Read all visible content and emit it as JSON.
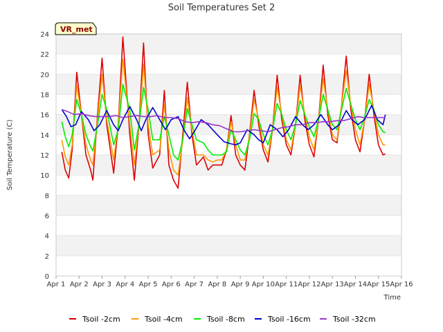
{
  "chart_data": {
    "type": "line",
    "title": "Soil Temperatures Set 2",
    "xlabel": "Time",
    "ylabel": "Soil Temperature (C)",
    "station_label": "VR_met",
    "xlim": [
      1,
      16
    ],
    "ylim": [
      0,
      24
    ],
    "x_tick_labels": [
      "Apr 1",
      "Apr 2",
      "Apr 3",
      "Apr 4",
      "Apr 5",
      "Apr 6",
      "Apr 7",
      "Apr 8",
      "Apr 9",
      "Apr 10",
      "Apr 11",
      "Apr 12",
      "Apr 13",
      "Apr 14",
      "Apr 15",
      "Apr 16"
    ],
    "y_ticks": [
      0,
      2,
      4,
      6,
      8,
      10,
      12,
      14,
      16,
      18,
      20,
      22,
      24
    ],
    "grid": "horizontal alternating bands",
    "legend_position": "bottom",
    "series": [
      {
        "name": "Tsoil -2cm",
        "color": "#dd0000",
        "x": [
          1.25,
          1.4,
          1.55,
          1.7,
          1.9,
          2.1,
          2.3,
          2.5,
          2.6,
          2.8,
          3.0,
          3.2,
          3.5,
          3.7,
          3.9,
          4.2,
          4.4,
          4.6,
          4.8,
          5.0,
          5.2,
          5.5,
          5.7,
          5.9,
          6.1,
          6.3,
          6.5,
          6.7,
          6.9,
          7.1,
          7.4,
          7.6,
          7.8,
          8.0,
          8.2,
          8.4,
          8.6,
          8.8,
          9.0,
          9.2,
          9.4,
          9.6,
          9.8,
          10.0,
          10.2,
          10.4,
          10.6,
          10.8,
          11.0,
          11.2,
          11.4,
          11.6,
          11.8,
          12.0,
          12.2,
          12.4,
          12.6,
          12.8,
          13.0,
          13.2,
          13.4,
          13.6,
          13.8,
          14.0,
          14.2,
          14.4,
          14.6,
          14.8,
          15.0,
          15.2,
          15.3
        ],
        "y": [
          12.3,
          10.5,
          9.7,
          12.5,
          20.2,
          16.0,
          12.0,
          10.5,
          9.5,
          16.0,
          21.6,
          15.0,
          10.2,
          15.0,
          23.7,
          14.0,
          9.5,
          15.0,
          23.1,
          14.0,
          10.7,
          12.0,
          18.4,
          11.0,
          9.5,
          8.7,
          14.0,
          19.2,
          14.0,
          11.0,
          11.8,
          10.5,
          11.0,
          11.0,
          11.0,
          12.5,
          15.9,
          12.0,
          11.0,
          10.5,
          14.0,
          18.4,
          15.0,
          12.5,
          11.3,
          14.5,
          19.9,
          15.5,
          13.0,
          12.0,
          15.0,
          19.9,
          15.5,
          13.0,
          11.8,
          15.5,
          20.9,
          16.0,
          13.5,
          13.2,
          17.0,
          21.8,
          16.5,
          13.5,
          12.3,
          15.5,
          20.0,
          16.0,
          13.0,
          12.0,
          12.1
        ]
      },
      {
        "name": "Tsoil -4cm",
        "color": "#ff9900",
        "x": [
          1.25,
          1.4,
          1.55,
          1.7,
          1.9,
          2.1,
          2.3,
          2.5,
          2.6,
          2.8,
          3.0,
          3.2,
          3.5,
          3.7,
          3.9,
          4.2,
          4.4,
          4.6,
          4.8,
          5.0,
          5.2,
          5.5,
          5.7,
          5.9,
          6.1,
          6.3,
          6.5,
          6.7,
          6.9,
          7.1,
          7.4,
          7.6,
          7.8,
          8.0,
          8.2,
          8.4,
          8.6,
          8.8,
          9.0,
          9.2,
          9.4,
          9.6,
          9.8,
          10.0,
          10.2,
          10.4,
          10.6,
          10.8,
          11.0,
          11.2,
          11.4,
          11.6,
          11.8,
          12.0,
          12.2,
          12.4,
          12.6,
          12.8,
          13.0,
          13.2,
          13.4,
          13.6,
          13.8,
          14.0,
          14.2,
          14.4,
          14.6,
          14.8,
          15.0,
          15.2,
          15.3
        ],
        "y": [
          13.5,
          11.8,
          11.0,
          13.0,
          18.9,
          16.0,
          13.0,
          11.5,
          11.0,
          15.5,
          20.0,
          15.5,
          11.5,
          15.0,
          21.5,
          15.0,
          11.0,
          15.0,
          21.0,
          15.0,
          12.0,
          12.5,
          17.0,
          12.5,
          10.5,
          10.0,
          13.5,
          17.7,
          14.5,
          12.0,
          12.0,
          11.5,
          11.3,
          11.5,
          11.5,
          12.5,
          15.3,
          13.0,
          11.5,
          11.5,
          13.8,
          17.5,
          15.5,
          13.0,
          12.0,
          14.5,
          18.7,
          16.0,
          13.5,
          12.5,
          15.0,
          18.9,
          16.0,
          13.8,
          12.5,
          15.5,
          19.6,
          16.5,
          14.0,
          13.5,
          17.0,
          20.4,
          17.0,
          14.5,
          13.0,
          15.5,
          19.0,
          16.5,
          14.0,
          13.0,
          13.0
        ]
      },
      {
        "name": "Tsoil -8cm",
        "color": "#00ee00",
        "x": [
          1.25,
          1.4,
          1.55,
          1.7,
          1.9,
          2.1,
          2.3,
          2.5,
          2.6,
          2.8,
          3.0,
          3.2,
          3.5,
          3.7,
          3.9,
          4.2,
          4.4,
          4.6,
          4.8,
          5.0,
          5.2,
          5.5,
          5.7,
          5.9,
          6.1,
          6.3,
          6.5,
          6.7,
          6.9,
          7.1,
          7.4,
          7.6,
          7.8,
          8.0,
          8.2,
          8.4,
          8.6,
          8.8,
          9.0,
          9.2,
          9.4,
          9.6,
          9.8,
          10.0,
          10.2,
          10.4,
          10.6,
          10.8,
          11.0,
          11.2,
          11.4,
          11.6,
          11.8,
          12.0,
          12.2,
          12.4,
          12.6,
          12.8,
          13.0,
          13.2,
          13.4,
          13.6,
          13.8,
          14.0,
          14.2,
          14.4,
          14.6,
          14.8,
          15.0,
          15.2,
          15.3
        ],
        "y": [
          15.3,
          13.8,
          12.8,
          14.0,
          17.5,
          16.0,
          14.0,
          12.8,
          12.4,
          15.0,
          18.0,
          16.5,
          13.0,
          14.5,
          19.0,
          16.5,
          12.5,
          15.0,
          18.7,
          16.5,
          13.5,
          13.5,
          15.8,
          14.0,
          12.0,
          11.5,
          13.5,
          16.6,
          15.0,
          13.5,
          13.2,
          12.5,
          12.0,
          12.0,
          12.0,
          12.3,
          14.5,
          13.5,
          12.5,
          12.0,
          13.5,
          16.1,
          15.5,
          14.0,
          13.0,
          14.5,
          17.1,
          16.0,
          14.5,
          13.5,
          15.0,
          17.4,
          16.0,
          14.8,
          13.8,
          15.5,
          18.0,
          16.5,
          15.0,
          14.5,
          16.5,
          18.6,
          17.0,
          15.5,
          14.5,
          15.8,
          17.5,
          16.5,
          15.0,
          14.3,
          14.2
        ]
      },
      {
        "name": "Tsoil -16cm",
        "color": "#0000cc",
        "x": [
          1.25,
          1.45,
          1.65,
          1.85,
          2.1,
          2.4,
          2.65,
          2.9,
          3.2,
          3.5,
          3.7,
          3.9,
          4.2,
          4.5,
          4.7,
          4.9,
          5.2,
          5.5,
          5.75,
          6.0,
          6.3,
          6.55,
          6.8,
          7.0,
          7.3,
          7.6,
          7.8,
          8.0,
          8.3,
          8.6,
          8.8,
          9.0,
          9.3,
          9.6,
          9.8,
          10.0,
          10.3,
          10.6,
          10.85,
          11.1,
          11.4,
          11.7,
          11.95,
          12.2,
          12.5,
          12.8,
          13.0,
          13.3,
          13.6,
          13.85,
          14.1,
          14.4,
          14.7,
          14.95,
          15.2,
          15.3
        ],
        "y": [
          16.5,
          15.8,
          14.8,
          15.0,
          16.3,
          15.5,
          14.4,
          15.0,
          16.4,
          15.0,
          14.4,
          15.5,
          16.8,
          15.5,
          14.4,
          15.5,
          16.7,
          15.5,
          14.5,
          15.5,
          15.8,
          14.5,
          13.6,
          14.3,
          15.5,
          15.0,
          14.5,
          14.0,
          13.3,
          13.1,
          13.0,
          13.2,
          14.5,
          14.0,
          13.5,
          13.2,
          15.0,
          14.5,
          13.8,
          14.5,
          15.8,
          15.0,
          14.5,
          15.0,
          16.0,
          15.0,
          14.5,
          15.0,
          16.4,
          15.5,
          15.0,
          15.5,
          16.9,
          15.5,
          15.0,
          16.0
        ]
      },
      {
        "name": "Tsoil -32cm",
        "color": "#9933cc",
        "x": [
          1.25,
          1.5,
          1.8,
          2.1,
          2.4,
          2.7,
          3.0,
          3.3,
          3.6,
          3.9,
          4.2,
          4.5,
          4.8,
          5.1,
          5.4,
          5.7,
          6.0,
          6.3,
          6.6,
          6.9,
          7.2,
          7.5,
          7.8,
          8.1,
          8.4,
          8.7,
          9.0,
          9.3,
          9.6,
          9.9,
          10.2,
          10.5,
          10.8,
          11.1,
          11.4,
          11.7,
          12.0,
          12.3,
          12.6,
          12.9,
          13.2,
          13.5,
          13.8,
          14.1,
          14.4,
          14.7,
          15.0,
          15.3
        ],
        "y": [
          16.5,
          16.3,
          16.0,
          16.1,
          15.9,
          15.8,
          15.8,
          15.8,
          15.9,
          15.7,
          15.8,
          15.9,
          15.8,
          15.8,
          15.9,
          15.7,
          15.7,
          15.6,
          15.3,
          15.2,
          15.3,
          15.2,
          15.0,
          14.9,
          14.6,
          14.3,
          14.3,
          14.4,
          14.5,
          14.4,
          14.3,
          14.5,
          14.7,
          14.8,
          15.0,
          15.0,
          15.2,
          15.2,
          15.3,
          15.3,
          15.4,
          15.4,
          15.6,
          15.8,
          15.7,
          15.7,
          15.7,
          15.7
        ]
      }
    ]
  }
}
